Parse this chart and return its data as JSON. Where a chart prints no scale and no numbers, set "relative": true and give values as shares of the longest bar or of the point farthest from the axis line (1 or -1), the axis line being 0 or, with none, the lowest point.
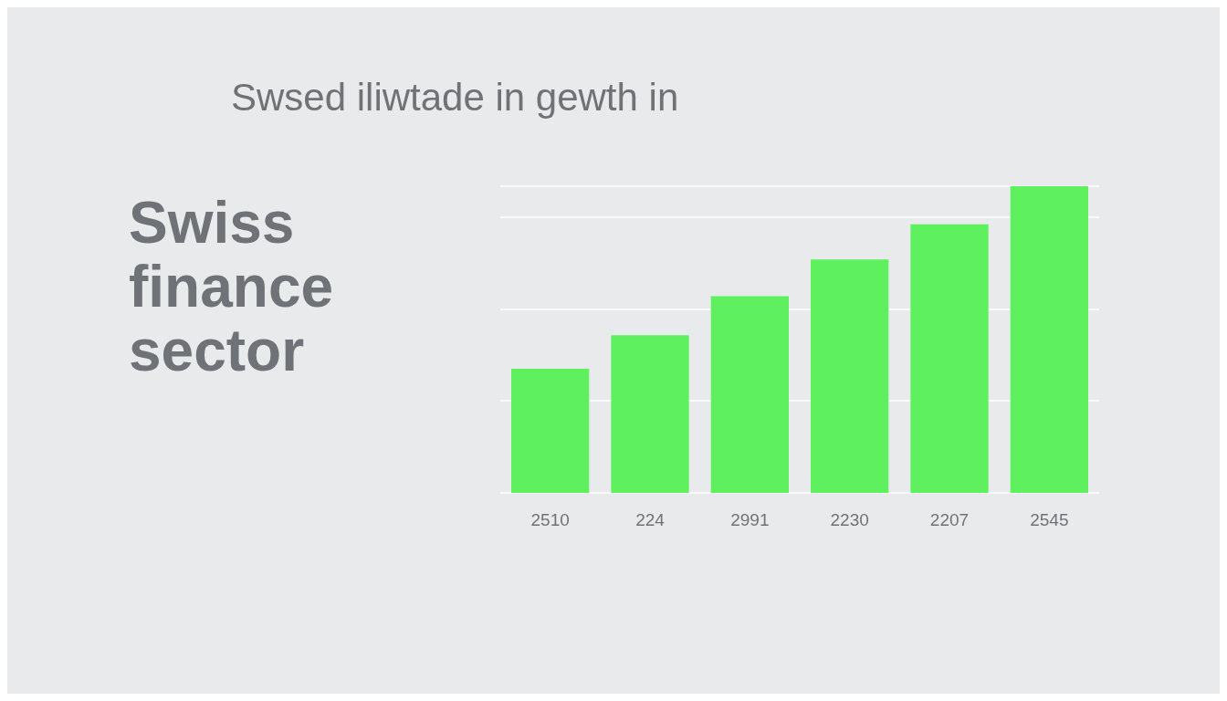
{
  "chart_data": {
    "type": "bar",
    "title": "Swsed iliwtade in gewth in",
    "subtitle": "Swiss finance sector",
    "categories": [
      "2510",
      "224",
      "2991",
      "2230",
      "2207",
      "2545"
    ],
    "values": [
      0.405,
      0.514,
      0.641,
      0.761,
      0.876,
      1
    ],
    "color": "#5ef05e",
    "relative": true,
    "grid": "y"
  }
}
